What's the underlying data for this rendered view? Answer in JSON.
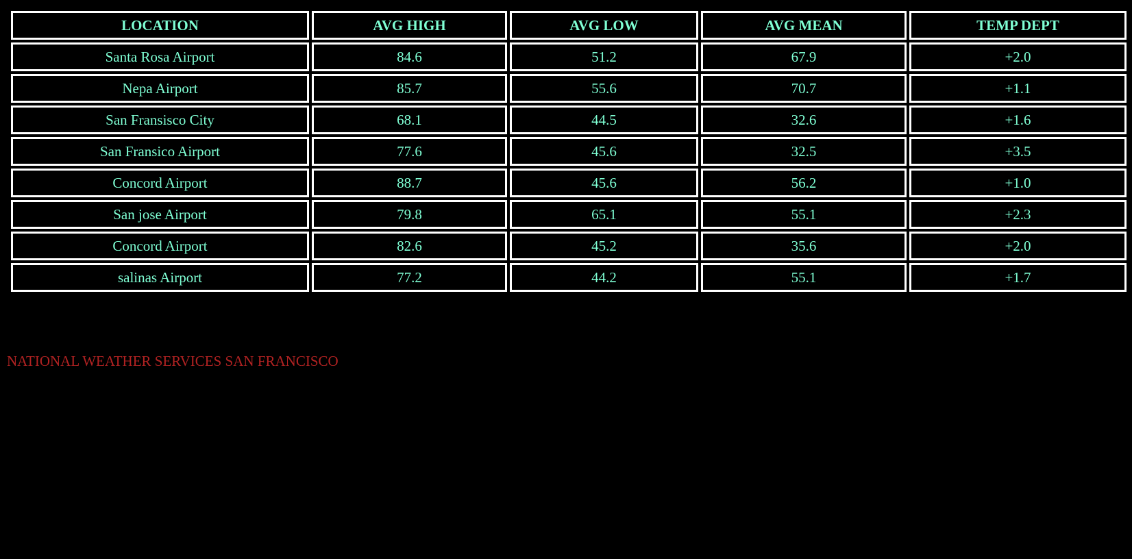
{
  "colors": {
    "background": "#000000",
    "text": "#7fffd4",
    "border": "#ffffff",
    "footer": "#b22222"
  },
  "table": {
    "headers": [
      "LOCATION",
      "AVG HIGH",
      "AVG LOW",
      "AVG MEAN",
      "TEMP DEPT"
    ],
    "rows": [
      [
        "Santa Rosa Airport",
        "84.6",
        "51.2",
        "67.9",
        "+2.0"
      ],
      [
        "Nepa Airport",
        "85.7",
        "55.6",
        "70.7",
        "+1.1"
      ],
      [
        "San Fransisco City",
        "68.1",
        "44.5",
        "32.6",
        "+1.6"
      ],
      [
        "San Fransico Airport",
        "77.6",
        "45.6",
        "32.5",
        "+3.5"
      ],
      [
        "Concord Airport",
        "88.7",
        "45.6",
        "56.2",
        "+1.0"
      ],
      [
        "San jose Airport",
        "79.8",
        "65.1",
        "55.1",
        "+2.3"
      ],
      [
        "Concord Airport",
        "82.6",
        "45.2",
        "35.6",
        "+2.0"
      ],
      [
        "salinas Airport",
        "77.2",
        "44.2",
        "55.1",
        "+1.7"
      ]
    ]
  },
  "footer": {
    "text": "NATIONAL WEATHER SERVICES SAN FRANCISCO"
  }
}
